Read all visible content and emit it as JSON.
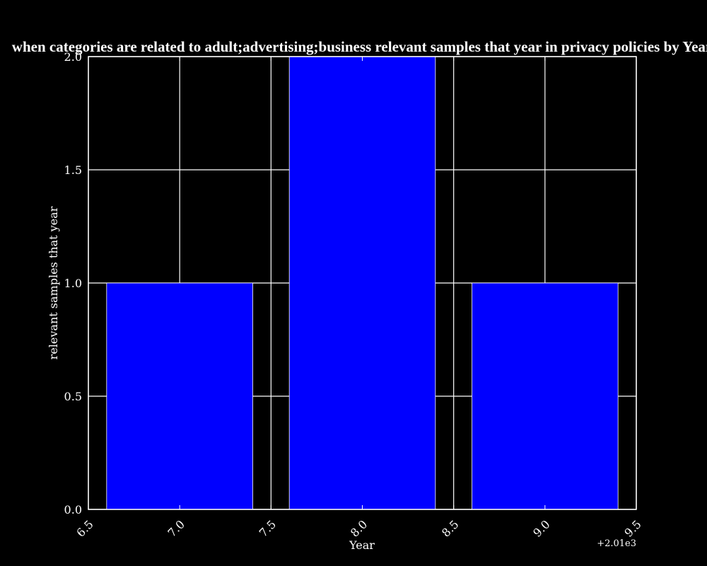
{
  "chart_data": {
    "type": "bar",
    "title": "when categories are related to adult;advertising;business relevant samples that year in privacy policies by Year",
    "xlabel": "Year",
    "ylabel": "relevant samples that year",
    "x_offset_label": "+2.01e3",
    "x": [
      7.0,
      8.0,
      9.0
    ],
    "values": [
      1,
      2,
      1
    ],
    "bar_width": 0.8,
    "xlim": [
      6.5,
      9.5
    ],
    "ylim": [
      0.0,
      2.0
    ],
    "x_ticks": [
      "6.5",
      "7.0",
      "7.5",
      "8.0",
      "8.5",
      "9.0",
      "9.5"
    ],
    "y_ticks": [
      "0.0",
      "0.5",
      "1.0",
      "1.5",
      "2.0"
    ],
    "grid": true,
    "colors": {
      "background": "#000000",
      "bar": "#0000ff",
      "foreground": "#ffffff"
    }
  }
}
